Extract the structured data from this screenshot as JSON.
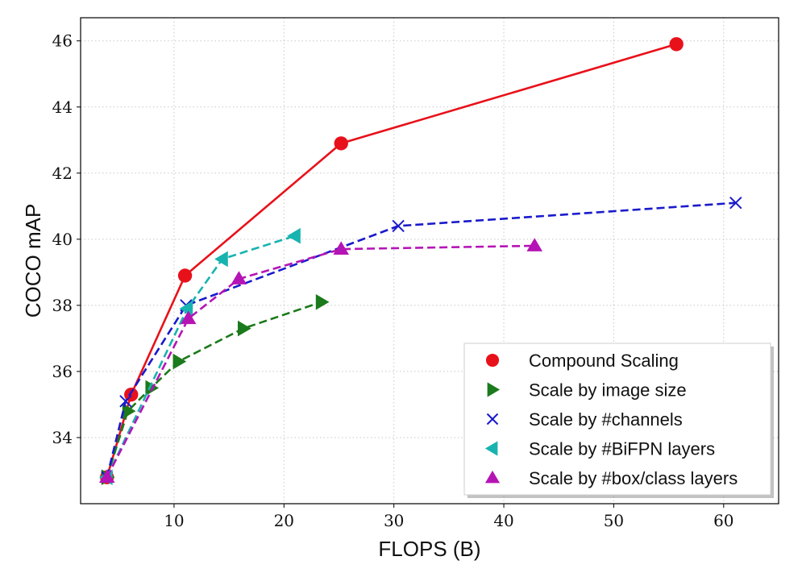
{
  "chart_data": {
    "type": "line",
    "xlabel": "FLOPS (B)",
    "ylabel": "COCO mAP",
    "xlim": [
      1.5,
      65
    ],
    "ylim": [
      32,
      46.7
    ],
    "xticks": [
      10,
      20,
      30,
      40,
      50,
      60
    ],
    "yticks": [
      34,
      36,
      38,
      40,
      42,
      44,
      46
    ],
    "grid": true,
    "legend_position": "bottom-right",
    "series": [
      {
        "name": "Compound Scaling",
        "color": "#e8111a",
        "marker": "circle",
        "dash": "solid",
        "x": [
          3.9,
          6.1,
          11.0,
          25.2,
          55.7
        ],
        "y": [
          32.8,
          35.3,
          38.9,
          42.9,
          45.9
        ]
      },
      {
        "name": "Scale by image size",
        "color": "#1b7a1b",
        "marker": "triangle-right",
        "dash": "dashed",
        "x": [
          3.9,
          5.8,
          7.9,
          10.4,
          16.3,
          23.4
        ],
        "y": [
          32.8,
          34.8,
          35.5,
          36.3,
          37.3,
          38.1
        ]
      },
      {
        "name": "Scale by #channels",
        "color": "#1a1acc",
        "marker": "x",
        "dash": "dashed",
        "x": [
          3.9,
          5.6,
          11.1,
          30.4,
          61.1
        ],
        "y": [
          32.8,
          35.1,
          38.0,
          40.4,
          41.1
        ]
      },
      {
        "name": "Scale by #BiFPN layers",
        "color": "#17b3b0",
        "marker": "triangle-left",
        "dash": "dashed",
        "x": [
          3.9,
          11.2,
          14.4,
          21.0
        ],
        "y": [
          32.8,
          37.9,
          39.4,
          40.1
        ]
      },
      {
        "name": "Scale by #box/class layers",
        "color": "#b514b5",
        "marker": "triangle-up",
        "dash": "dashed",
        "x": [
          3.9,
          11.3,
          15.9,
          25.2,
          42.8
        ],
        "y": [
          32.8,
          37.6,
          38.8,
          39.7,
          39.8
        ]
      }
    ]
  }
}
